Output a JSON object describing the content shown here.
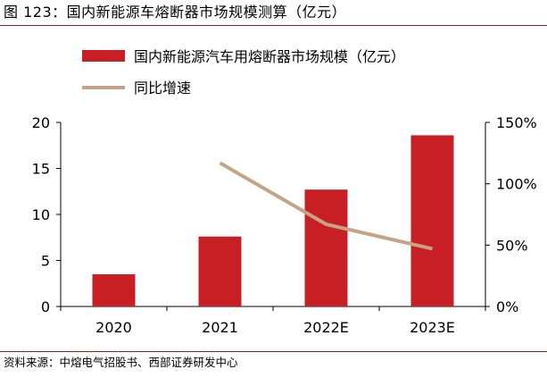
{
  "header": {
    "title": "图 123：国内新能源车熔断器市场规模测算（亿元）"
  },
  "footer": {
    "source": "资料来源：中熔电气招股书、西部证券研发中心"
  },
  "colors": {
    "bar": "#c81f24",
    "line": "#c4a484",
    "rule": "#9a1b1e",
    "axis": "#000000"
  },
  "chart_data": {
    "type": "bar",
    "title": "图 123：国内新能源车熔断器市场规模测算（亿元）",
    "categories": [
      "2020",
      "2021",
      "2022E",
      "2023E"
    ],
    "series": [
      {
        "name": "国内新能源汽车用熔断器市场规模（亿元）",
        "type": "bar",
        "axis": "left",
        "values": [
          3.5,
          7.6,
          12.7,
          18.6
        ]
      },
      {
        "name": "同比增速",
        "type": "line",
        "axis": "right",
        "values": [
          null,
          1.17,
          0.67,
          0.47
        ]
      }
    ],
    "y_left": {
      "ylim": [
        0,
        20
      ],
      "ticks": [
        0,
        5,
        10,
        15,
        20
      ],
      "tick_labels": [
        "0",
        "5",
        "10",
        "15",
        "20"
      ]
    },
    "y_right": {
      "ylim": [
        0,
        1.5
      ],
      "ticks": [
        0,
        0.5,
        1.0,
        1.5
      ],
      "tick_labels": [
        "0%",
        "50%",
        "100%",
        "150%"
      ]
    },
    "legend": "top-left",
    "grid": false
  }
}
